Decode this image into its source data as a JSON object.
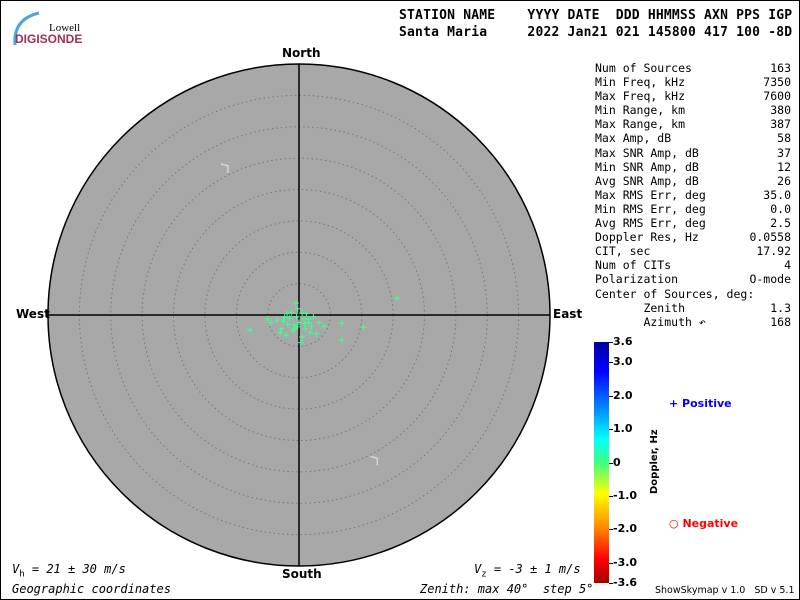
{
  "logo": {
    "line1": "Lowell",
    "line2": "DIGISONDE"
  },
  "header": {
    "labels": "STATION NAME    YYYY DATE  DDD HHMMSS AXN PPS IGP",
    "values": "Santa Maria     2022 Jan21 021 145800 417 100 -8D"
  },
  "stats": [
    {
      "label": "Num of Sources",
      "value": "163"
    },
    {
      "label": "Min Freq, kHz",
      "value": "7350"
    },
    {
      "label": "Max Freq, kHz",
      "value": "7600"
    },
    {
      "label": "Min Range, km",
      "value": "380"
    },
    {
      "label": "Max Range, km",
      "value": "387"
    },
    {
      "label": "Max Amp, dB",
      "value": "58"
    },
    {
      "label": "Max SNR Amp, dB",
      "value": "37"
    },
    {
      "label": "Min SNR Amp, dB",
      "value": "12"
    },
    {
      "label": "Avg SNR Amp, dB",
      "value": "26"
    },
    {
      "label": "Max RMS Err, deg",
      "value": "35.0"
    },
    {
      "label": "Min RMS Err, deg",
      "value": "0.0"
    },
    {
      "label": "Avg RMS Err, deg",
      "value": "2.5"
    },
    {
      "label": "Doppler Res, Hz",
      "value": "0.0558"
    },
    {
      "label": "CIT, sec",
      "value": "17.92"
    },
    {
      "label": "Num of CITs",
      "value": "4"
    },
    {
      "label": "Polarization",
      "value": "O-mode"
    },
    {
      "label": "Center of Sources, deg:",
      "value": ""
    },
    {
      "label": "       Zenith",
      "value": "1.3"
    },
    {
      "label": "       Azimuth ↶",
      "value": "168"
    }
  ],
  "directions": {
    "north": "North",
    "south": "South",
    "east": "East",
    "west": "West"
  },
  "footer": {
    "vh_sym": "V",
    "vh_sub": "h",
    "vh_text": " = 21 ± 30 m/s",
    "vz_sym": "V",
    "vz_sub": "z",
    "vz_text": " = -3 ± 1 m/s",
    "coords": "Geographic coordinates",
    "zenith": "Zenith: max 40°  step 5°",
    "version": "ShowSkymap v 1.0   SD v 5.1"
  },
  "colorbar": {
    "title": "Doppler, Hz",
    "ticks": [
      "3.6",
      "3.0",
      "2.0",
      "1.0",
      "0",
      "-1.0",
      "-2.0",
      "-3.0",
      "-3.6"
    ],
    "tick_values": [
      3.6,
      3.0,
      2.0,
      1.0,
      0,
      -1.0,
      -2.0,
      -3.0,
      -3.6
    ]
  },
  "legend": {
    "positive": "Positive",
    "negative": "Negative",
    "positive_color": "#0000ff",
    "negative_color": "#ff0000"
  },
  "chart_data": {
    "type": "scatter",
    "zenith_max_deg": 40,
    "zenith_step_deg": 5,
    "background": "#a8a8a8",
    "point_color": "#40ff90",
    "points_east_north_deg": [
      [
        15.6,
        2.7
      ],
      [
        6.8,
        -1.3
      ],
      [
        10.3,
        -2
      ],
      [
        6.8,
        -4
      ],
      [
        -7.8,
        -2.4
      ],
      [
        -0.5,
        1.9
      ],
      [
        -0.2,
        1.0
      ],
      [
        0.5,
        0.3
      ],
      [
        -1.5,
        -0.5
      ],
      [
        -2.5,
        -1
      ],
      [
        -3.5,
        -0.8
      ],
      [
        -4.5,
        -1.2
      ],
      [
        -5,
        -0.6
      ],
      [
        1.5,
        -0.7
      ],
      [
        2.3,
        -0.3
      ],
      [
        3.2,
        -1.2
      ],
      [
        4,
        -1.8
      ],
      [
        1,
        -2.2
      ],
      [
        -1,
        -2.5
      ],
      [
        -2,
        -3.2
      ],
      [
        0.5,
        -3.5
      ],
      [
        1.8,
        -2.8
      ],
      [
        2.8,
        -3
      ],
      [
        -0.8,
        -1.6
      ],
      [
        0,
        -1.2
      ],
      [
        -1.8,
        -1.5
      ],
      [
        -2.8,
        -2.2
      ],
      [
        0.9,
        -1.4
      ],
      [
        -0.4,
        -0.3
      ],
      [
        1.2,
        0.2
      ],
      [
        -1.2,
        0.4
      ],
      [
        -3,
        -2.8
      ],
      [
        0.3,
        -4.4
      ],
      [
        -0.6,
        -2.2
      ],
      [
        2,
        -1.8
      ],
      [
        -1.9,
        0.2
      ],
      [
        0.8,
        -0.6
      ],
      [
        -0.3,
        -1.9
      ],
      [
        1.5,
        -1.2
      ],
      [
        -2.3,
        -0.4
      ]
    ],
    "markers_east_north_deg": [
      [
        -11.8,
        23.6
      ],
      [
        12,
        -23
      ]
    ]
  }
}
